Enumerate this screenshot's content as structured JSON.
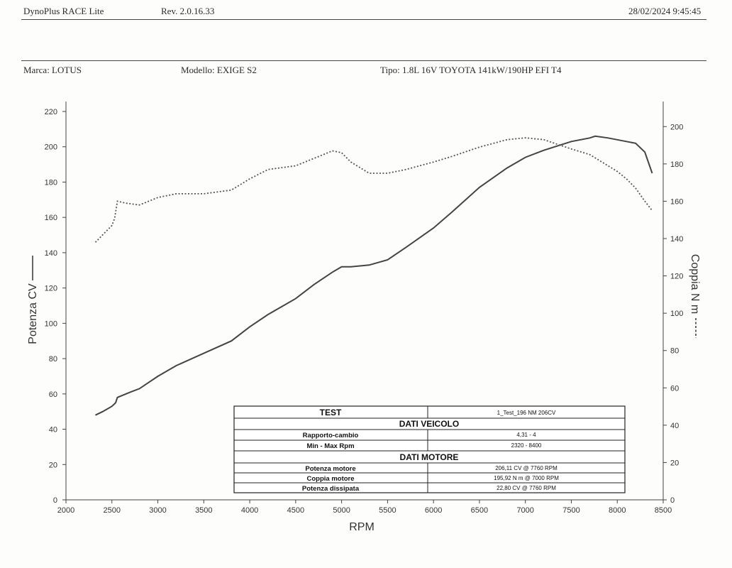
{
  "header": {
    "app_name": "DynoPlus RACE Lite",
    "revision": "Rev. 2.0.16.33",
    "datetime": "28/02/2024 9:45:45"
  },
  "vehicle": {
    "brand": "Marca: LOTUS",
    "model": "Modello: EXIGE S2",
    "type": "Tipo: 1.8L 16V TOYOTA 141kW/190HP EFI T4"
  },
  "info_table": {
    "test_label": "TEST",
    "test_value": "1_Test_196 NM 206CV",
    "vehicle_section": "DATI VEICOLO",
    "gear_ratio_label": "Rapporto-cambio",
    "gear_ratio_value": "4,31 - 4",
    "rpm_range_label": "Min - Max Rpm",
    "rpm_range_value": "2320 - 8400",
    "engine_section": "DATI MOTORE",
    "power_label": "Potenza motore",
    "power_value": "206,11 CV @ 7760 RPM",
    "torque_label": "Coppia motore",
    "torque_value": "195,92 N m @ 7000 RPM",
    "loss_label": "Potenza dissipata",
    "loss_value": "22,80 CV @ 7760 RPM"
  },
  "chart_data": {
    "type": "line",
    "xlabel": "RPM",
    "ylabel_left": "Potenza CV",
    "ylabel_right": "Coppia N m",
    "xlim": [
      2000,
      8500
    ],
    "ylim_left": [
      0,
      220
    ],
    "ylim_right": [
      0,
      210
    ],
    "x_ticks": [
      2000,
      2500,
      3000,
      3500,
      4000,
      4500,
      5000,
      5500,
      6000,
      6500,
      7000,
      7500,
      8000,
      8500
    ],
    "y_ticks_left": [
      0,
      20,
      40,
      60,
      80,
      100,
      120,
      140,
      160,
      180,
      200,
      220
    ],
    "y_ticks_right": [
      0,
      20,
      40,
      60,
      80,
      100,
      120,
      140,
      160,
      180,
      200
    ],
    "grid": false,
    "colors": {
      "axes": "#444444",
      "power_line": "#444444",
      "torque_line": "#555555"
    },
    "series": [
      {
        "key": "power",
        "axis": "left",
        "style": "solid",
        "x": [
          2320,
          2400,
          2500,
          2540,
          2560,
          2700,
          2800,
          3000,
          3200,
          3500,
          3800,
          4000,
          4200,
          4500,
          4700,
          4900,
          5000,
          5100,
          5300,
          5500,
          5700,
          6000,
          6200,
          6500,
          6800,
          7000,
          7200,
          7500,
          7700,
          7760,
          7900,
          8000,
          8100,
          8200,
          8300,
          8380
        ],
        "y": [
          48,
          50,
          53,
          55,
          58,
          61,
          63,
          70,
          76,
          83,
          90,
          98,
          105,
          114,
          122,
          129,
          132,
          132,
          133,
          136,
          143,
          154,
          163,
          177,
          188,
          194,
          198,
          203,
          205,
          206,
          205,
          204,
          203,
          202,
          197,
          185
        ]
      },
      {
        "key": "torque",
        "axis": "right",
        "style": "dashed",
        "x": [
          2320,
          2400,
          2500,
          2530,
          2560,
          2650,
          2800,
          3000,
          3200,
          3500,
          3800,
          4000,
          4200,
          4500,
          4700,
          4900,
          5000,
          5100,
          5300,
          5500,
          5700,
          6000,
          6200,
          6500,
          6800,
          7000,
          7200,
          7500,
          7700,
          7900,
          8000,
          8100,
          8200,
          8300,
          8380
        ],
        "y": [
          138,
          142,
          147,
          151,
          160,
          159,
          158,
          162,
          164,
          164,
          166,
          172,
          177,
          179,
          183,
          187,
          186,
          181,
          175,
          175,
          177,
          181,
          184,
          189,
          193,
          194,
          193,
          188,
          185,
          179,
          176,
          172,
          167,
          160,
          155
        ]
      }
    ]
  }
}
